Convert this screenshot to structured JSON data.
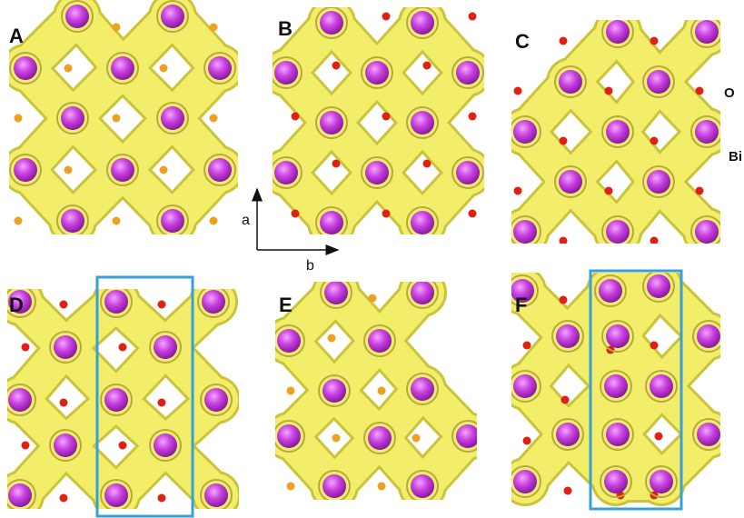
{
  "panels": [
    {
      "label": "A"
    },
    {
      "label": "B"
    },
    {
      "label": "C"
    },
    {
      "label": "D"
    },
    {
      "label": "E"
    },
    {
      "label": "F"
    }
  ],
  "legend": {
    "o": "O",
    "bi": "Bi"
  },
  "axes": {
    "a": "a",
    "b": "b"
  }
}
